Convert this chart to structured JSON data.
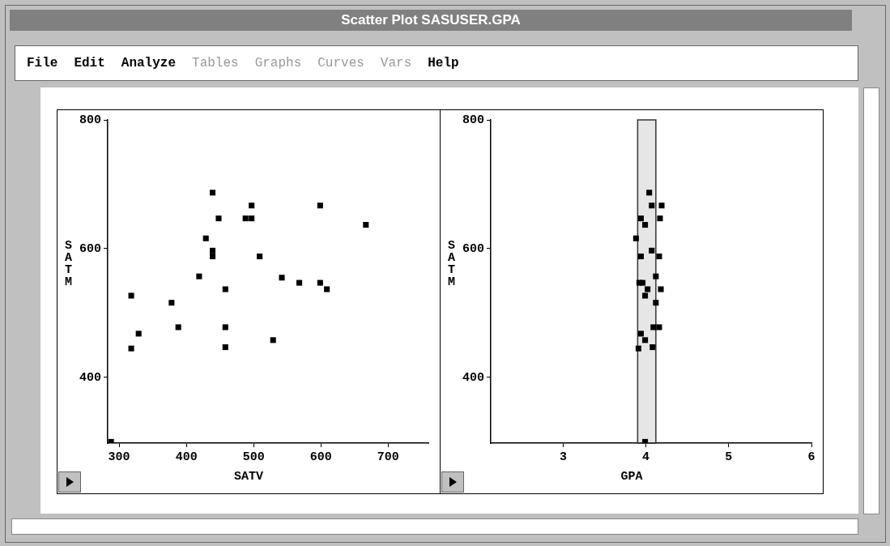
{
  "chart_data": [
    {
      "type": "other",
      "title": "Scatter Plot SASUSER.GPA",
      "annotations": [
        "File",
        "Edit",
        "Analyze",
        "Tables",
        "Graphs",
        "Curves",
        "Vars",
        "Help"
      ]
    },
    {
      "type": "scatter",
      "xlabel": "SATV",
      "ylabel": "SATM",
      "color": "#000000",
      "marker": "square",
      "xlim": [
        283,
        760
      ],
      "ylim": [
        298,
        800
      ],
      "xticks": [
        300,
        400,
        500,
        600,
        700
      ],
      "yticks": [
        400,
        600,
        800
      ],
      "x": [
        288,
        318,
        318,
        329,
        378,
        388,
        419,
        429,
        439,
        439,
        439,
        448,
        458,
        458,
        458,
        488,
        497,
        497,
        509,
        529,
        542,
        568,
        599,
        599,
        609,
        667
      ],
      "values": [
        300,
        527,
        445,
        468,
        516,
        478,
        557,
        616,
        687,
        597,
        588,
        647,
        537,
        478,
        447,
        647,
        647,
        667,
        588,
        458,
        555,
        547,
        667,
        547,
        537,
        637
      ]
    },
    {
      "type": "scatter",
      "xlabel": "GPA",
      "ylabel": "SATM",
      "color": "#000000",
      "marker": "square",
      "bands": [
        {
          "axis": "x",
          "from": 3.9,
          "to": 4.12,
          "color": "#333333"
        }
      ],
      "xlim": [
        2.125,
        6
      ],
      "ylim": [
        298,
        800
      ],
      "xticks": [
        3,
        4,
        5,
        6
      ],
      "yticks": [
        400,
        600,
        800
      ],
      "x": [
        4.04,
        4.07,
        4.19,
        3.94,
        4.17,
        3.99,
        3.88,
        4.07,
        3.94,
        4.16,
        4.12,
        3.92,
        3.96,
        4.02,
        4.18,
        3.99,
        4.12,
        4.09,
        4.16,
        3.94,
        3.99,
        3.91,
        4.08,
        3.99
      ],
      "values": [
        687,
        667,
        667,
        647,
        647,
        637,
        616,
        597,
        588,
        588,
        557,
        547,
        547,
        537,
        537,
        527,
        516,
        478,
        478,
        468,
        458,
        445,
        447,
        300
      ]
    }
  ]
}
